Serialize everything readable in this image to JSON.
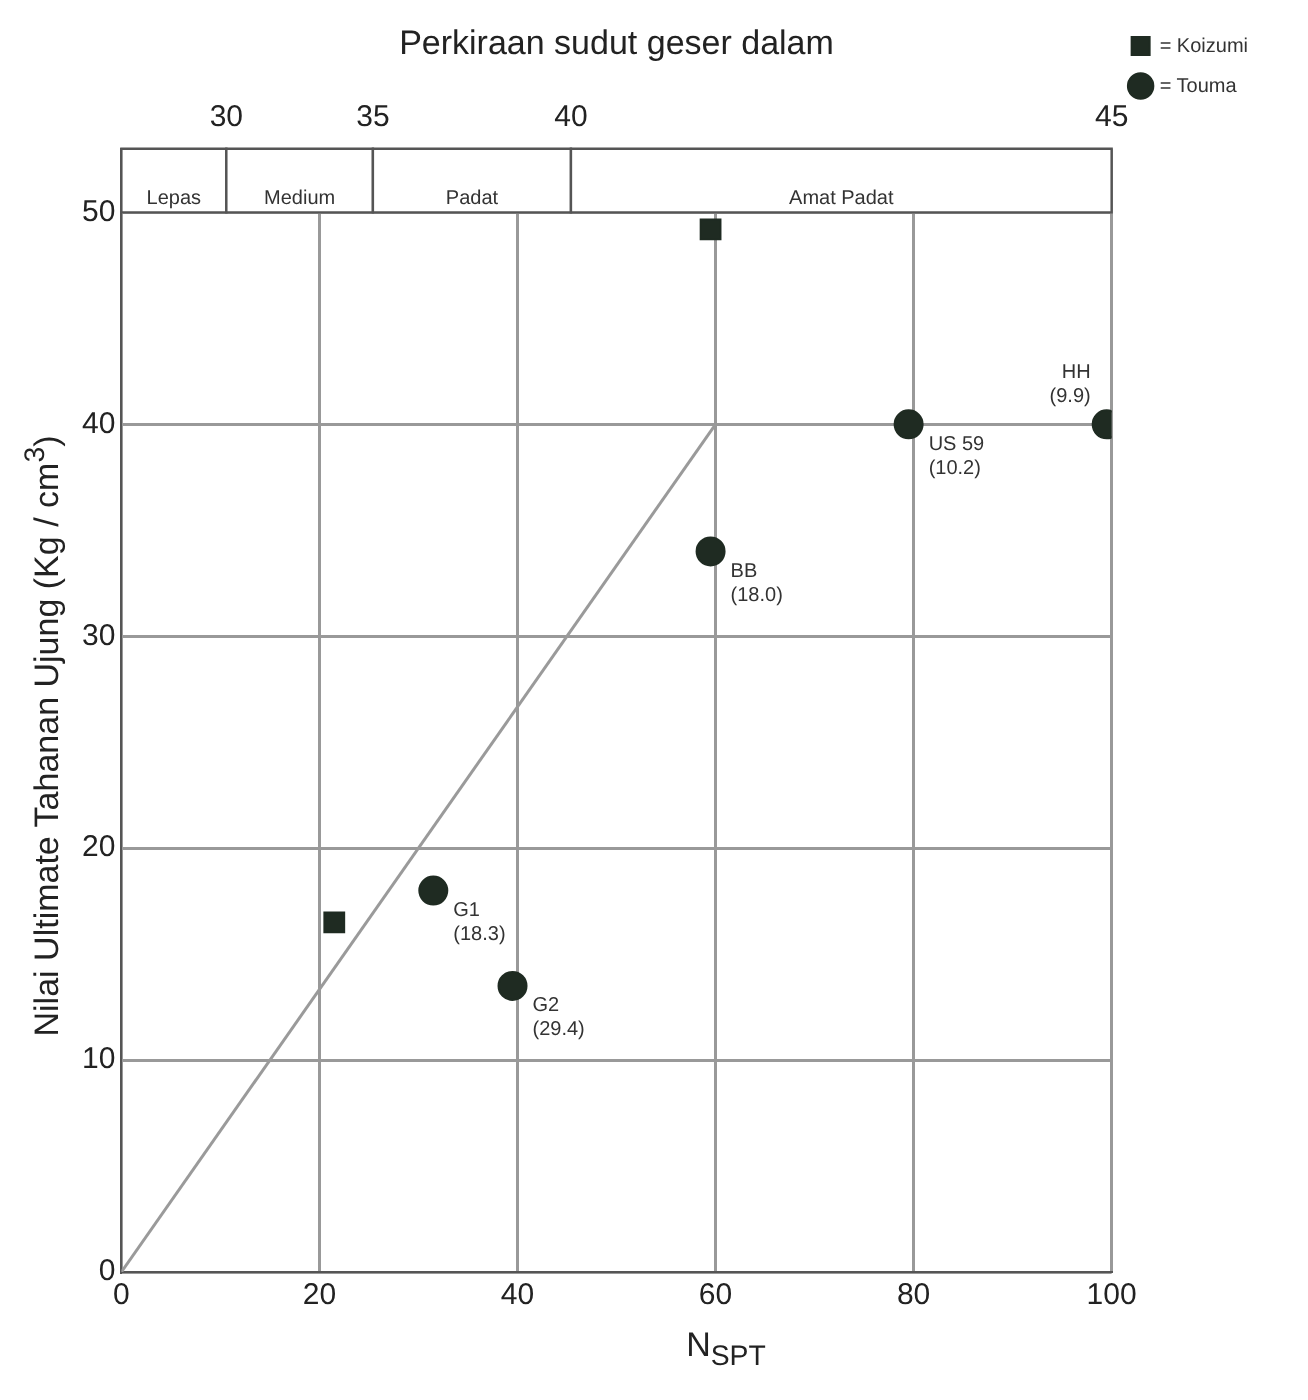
{
  "chart_data": {
    "type": "scatter",
    "x2label": "Perkiraan sudut geser dalam",
    "xlabel": "N$_{SPT}$",
    "ylabel": "Nilai Ultimate Tahanan Ujung (Kg / cm$^{3}$)",
    "xlim": [
      0,
      100
    ],
    "xticks": [
      0,
      20,
      40,
      60,
      80,
      100
    ],
    "ylim": [
      0,
      53
    ],
    "yticks": [
      0,
      10,
      20,
      30,
      40,
      50
    ],
    "grid": true,
    "legend": "top right",
    "bands": [
      {
        "axis": "x",
        "from": 0,
        "to": 10.6,
        "label": "Lepas"
      },
      {
        "axis": "x",
        "from": 10.6,
        "to": 25.4,
        "label": "Medium"
      },
      {
        "axis": "x",
        "from": 25.4,
        "to": 45.4,
        "label": "Padat"
      },
      {
        "axis": "x",
        "from": 45.4,
        "to": 100,
        "label": "Amat Padat"
      }
    ],
    "series": [
      {
        "type": "scatter",
        "name": "= Koizumi",
        "color": "#1f2b22",
        "marker": "square",
        "x": [
          21.5,
          59.5
        ],
        "values": [
          16.5,
          49.2
        ]
      },
      {
        "type": "scatter",
        "name": "= Touma",
        "color": "#1f2b22",
        "marker": "circle",
        "x": [
          31.5,
          39.5,
          59.5,
          79.5,
          99.5
        ],
        "values": [
          18,
          13.5,
          34,
          40,
          40
        ]
      },
      {
        "type": "line",
        "color": "#9a9a9a",
        "marker": "none",
        "x": [
          0,
          60
        ],
        "values": [
          0,
          40
        ]
      }
    ],
    "annotations": [
      "30",
      "35",
      "40",
      "45",
      {
        "text": "G1\n(18.3)",
        "x": 31.5,
        "y": 18
      },
      {
        "text": "G2\n(29.4)",
        "x": 39.5,
        "y": 13.5
      },
      {
        "text": "BB\n(18.0)",
        "x": 59.5,
        "y": 34
      },
      {
        "text": "US 59\n(10.2)",
        "x": 79.5,
        "y": 40
      },
      {
        "text": "HH\n(9.9)",
        "x": 99.5,
        "y": 40
      }
    ]
  }
}
